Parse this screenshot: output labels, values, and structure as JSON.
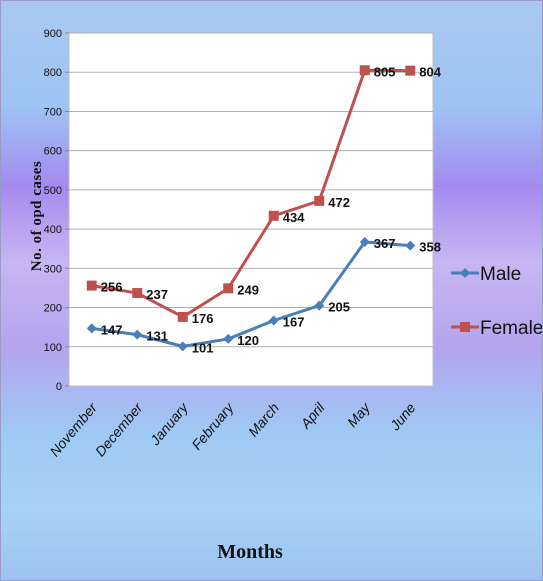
{
  "chart_data": {
    "type": "line",
    "title": "",
    "xlabel": "Months",
    "ylabel": "No.  of opd cases",
    "categories": [
      "November",
      "December",
      "January",
      "February",
      "March",
      "April",
      "May",
      "June"
    ],
    "ylim": [
      0,
      900
    ],
    "yticks": [
      0,
      100,
      200,
      300,
      400,
      500,
      600,
      700,
      800,
      900
    ],
    "grid": true,
    "legend": "right",
    "series": [
      {
        "name": "Male",
        "color": "#4a7ebb",
        "marker": "diamond",
        "values": [
          147,
          131,
          101,
          120,
          167,
          205,
          367,
          358
        ]
      },
      {
        "name": "Female",
        "color": "#c0504d",
        "marker": "square",
        "values": [
          256,
          237,
          176,
          249,
          434,
          472,
          805,
          804
        ]
      }
    ]
  }
}
